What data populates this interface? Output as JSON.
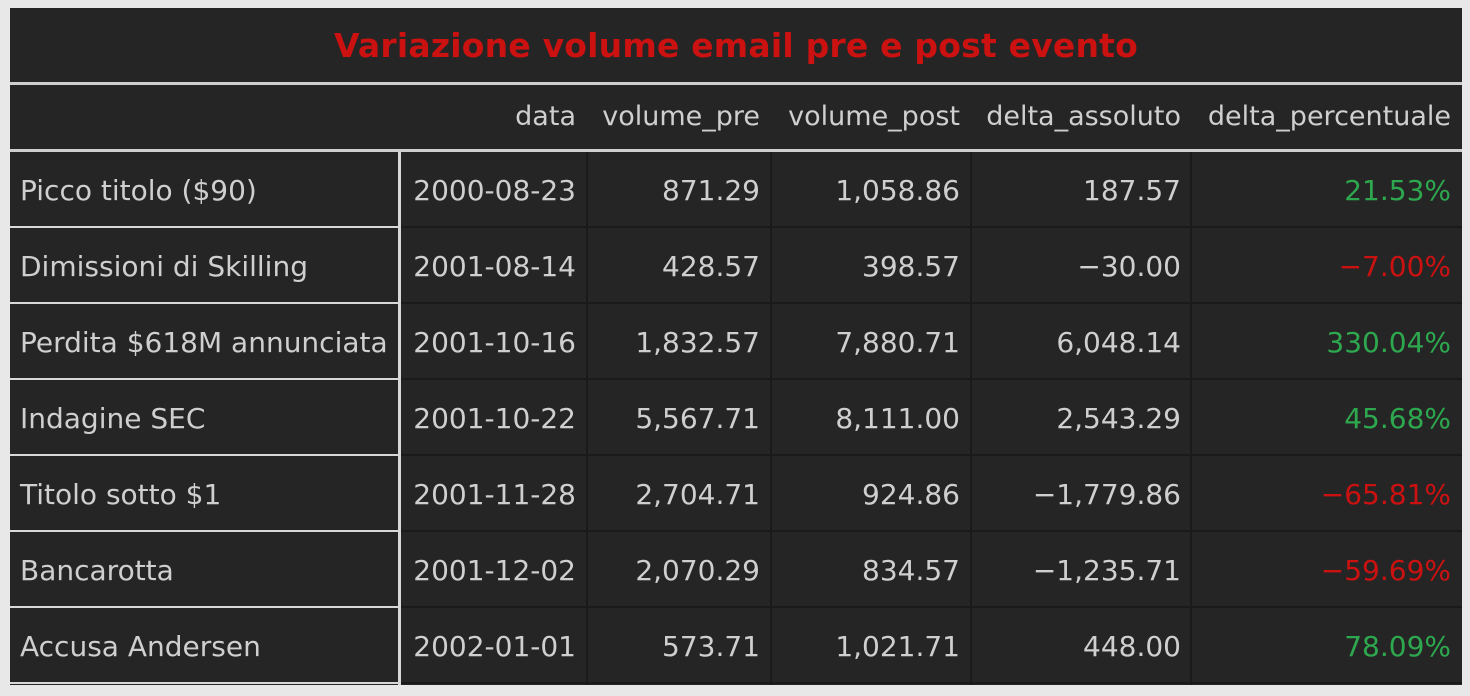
{
  "table": {
    "title": "Variazione volume email pre e post evento",
    "columns": [
      "data",
      "volume_pre",
      "volume_post",
      "delta_assoluto",
      "delta_percentuale"
    ],
    "rows": [
      {
        "evento": "Picco titolo ($90)",
        "data": "2000-08-23",
        "volume_pre": "871.29",
        "volume_post": "1,058.86",
        "delta_assoluto": "187.57",
        "delta_percentuale": "21.53%",
        "trend": "positive"
      },
      {
        "evento": "Dimissioni di Skilling",
        "data": "2001-08-14",
        "volume_pre": "428.57",
        "volume_post": "398.57",
        "delta_assoluto": "−30.00",
        "delta_percentuale": "−7.00%",
        "trend": "negative"
      },
      {
        "evento": "Perdita $618M annunciata",
        "data": "2001-10-16",
        "volume_pre": "1,832.57",
        "volume_post": "7,880.71",
        "delta_assoluto": "6,048.14",
        "delta_percentuale": "330.04%",
        "trend": "positive"
      },
      {
        "evento": "Indagine SEC",
        "data": "2001-10-22",
        "volume_pre": "5,567.71",
        "volume_post": "8,111.00",
        "delta_assoluto": "2,543.29",
        "delta_percentuale": "45.68%",
        "trend": "positive"
      },
      {
        "evento": "Titolo sotto $1",
        "data": "2001-11-28",
        "volume_pre": "2,704.71",
        "volume_post": "924.86",
        "delta_assoluto": "−1,779.86",
        "delta_percentuale": "−65.81%",
        "trend": "negative"
      },
      {
        "evento": "Bancarotta",
        "data": "2001-12-02",
        "volume_pre": "2,070.29",
        "volume_post": "834.57",
        "delta_assoluto": "−1,235.71",
        "delta_percentuale": "−59.69%",
        "trend": "negative"
      },
      {
        "evento": "Accusa Andersen",
        "data": "2002-01-01",
        "volume_pre": "573.71",
        "volume_post": "1,021.71",
        "delta_assoluto": "448.00",
        "delta_percentuale": "78.09%",
        "trend": "positive"
      }
    ]
  },
  "colors": {
    "background": "#252525",
    "text": "#cfcfcf",
    "title": "#cc1111",
    "positive": "#2ea84f",
    "negative": "#cc1111",
    "separator": "#cfcfcf"
  }
}
